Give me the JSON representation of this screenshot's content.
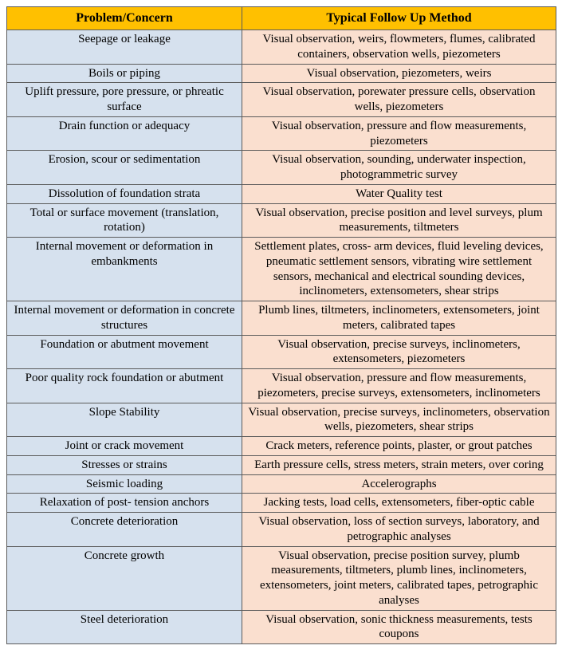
{
  "table": {
    "header_bg": "#ffc000",
    "col1_bg": "#d6e1ee",
    "col2_bg": "#fadfcf",
    "columns": [
      "Problem/Concern",
      "Typical Follow Up Method"
    ],
    "rows": [
      {
        "problem": "Seepage or leakage",
        "method": "Visual observation, weirs, flowmeters, flumes, calibrated containers, observation wells, piezometers"
      },
      {
        "problem": "Boils or piping",
        "method": "Visual observation, piezometers, weirs"
      },
      {
        "problem": "Uplift pressure, pore pressure, or phreatic surface",
        "method": "Visual observation, porewater pressure cells, observation wells, piezometers"
      },
      {
        "problem": "Drain function or adequacy",
        "method": "Visual observation, pressure and flow measurements, piezometers"
      },
      {
        "problem": "Erosion, scour or sedimentation",
        "method": "Visual observation, sounding, underwater inspection, photogrammetric survey"
      },
      {
        "problem": "Dissolution of foundation strata",
        "method": "Water Quality test"
      },
      {
        "problem": "Total or surface movement (translation, rotation)",
        "method": "Visual observation, precise position and level surveys, plum measurements, tiltmeters"
      },
      {
        "problem": "Internal movement or deformation in embankments",
        "method": "Settlement plates, cross- arm devices, fluid leveling devices, pneumatic settlement sensors, vibrating wire settlement sensors, mechanical and electrical sounding devices, inclinometers, extensometers, shear strips"
      },
      {
        "problem": "Internal movement or deformation in concrete structures",
        "method": "Plumb lines, tiltmeters, inclinometers, extensometers, joint meters, calibrated tapes"
      },
      {
        "problem": "Foundation or abutment movement",
        "method": "Visual observation, precise surveys, inclinometers, extensometers, piezometers"
      },
      {
        "problem": "Poor quality rock foundation or abutment",
        "method": "Visual observation, pressure and flow measurements, piezometers, precise surveys, extensometers, inclinometers"
      },
      {
        "problem": "Slope Stability",
        "method": "Visual observation, precise surveys, inclinometers, observation wells, piezometers, shear strips"
      },
      {
        "problem": "Joint or crack movement",
        "method": "Crack meters, reference points, plaster, or grout patches"
      },
      {
        "problem": "Stresses or strains",
        "method": "Earth pressure cells, stress meters, strain meters, over coring"
      },
      {
        "problem": "Seismic loading",
        "method": "Accelerographs"
      },
      {
        "problem": "Relaxation of post- tension anchors",
        "method": "Jacking tests, load cells, extensometers, fiber-optic cable"
      },
      {
        "problem": "Concrete deterioration",
        "method": "Visual observation, loss of section surveys, laboratory, and petrographic analyses"
      },
      {
        "problem": "Concrete growth",
        "method": "Visual observation, precise position survey, plumb measurements, tiltmeters, plumb lines, inclinometers, extensometers, joint meters, calibrated tapes, petrographic analyses"
      },
      {
        "problem": "Steel deterioration",
        "method": "Visual observation, sonic thickness measurements, tests coupons"
      }
    ]
  }
}
